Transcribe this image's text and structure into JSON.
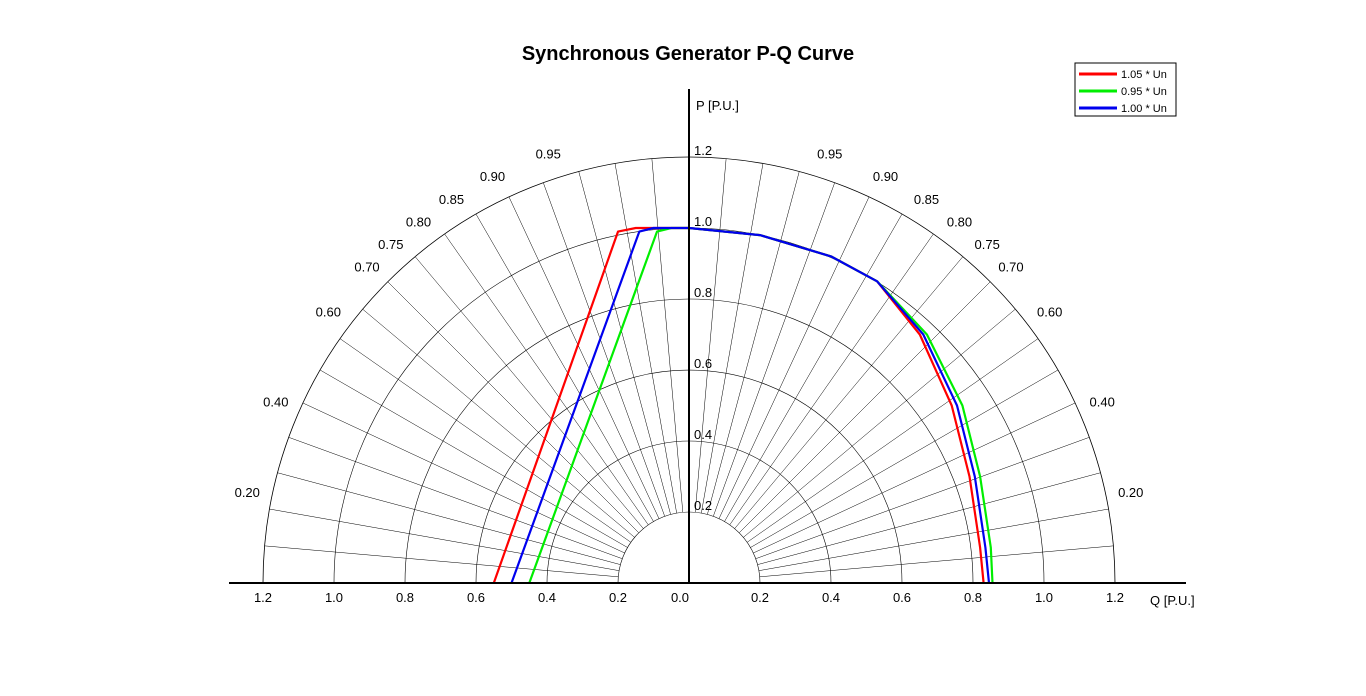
{
  "chart_data": {
    "type": "line",
    "title": "Synchronous Generator P-Q Curve",
    "xlabel": "Q [P.U.]",
    "ylabel": "P [P.U.]",
    "xlim": [
      -1.2,
      1.2
    ],
    "ylim": [
      0,
      1.2
    ],
    "x_ticks": [
      "1.2",
      "1.0",
      "0.8",
      "0.6",
      "0.4",
      "0.2",
      "0.0",
      "0.2",
      "0.4",
      "0.6",
      "0.8",
      "1.0",
      "1.2"
    ],
    "x_tick_values": [
      -1.2,
      -1.0,
      -0.8,
      -0.6,
      -0.4,
      -0.2,
      0.0,
      0.2,
      0.4,
      0.6,
      0.8,
      1.0,
      1.2
    ],
    "radial_ticks": [
      "0.2",
      "0.4",
      "0.6",
      "0.8",
      "1.0",
      "1.2"
    ],
    "radial_tick_values": [
      0.2,
      0.4,
      0.6,
      0.8,
      1.0,
      1.2
    ],
    "power_factor_labels_left": [
      {
        "label": "0.95",
        "pf": 0.95
      },
      {
        "label": "0.90",
        "pf": 0.9
      },
      {
        "label": "0.85",
        "pf": 0.85
      },
      {
        "label": "0.80",
        "pf": 0.8
      },
      {
        "label": "0.75",
        "pf": 0.75
      },
      {
        "label": "0.70",
        "pf": 0.7
      },
      {
        "label": "0.60",
        "pf": 0.6
      },
      {
        "label": "0.40",
        "pf": 0.4
      },
      {
        "label": "0.20",
        "pf": 0.2
      }
    ],
    "power_factor_labels_right": [
      {
        "label": "0.95",
        "pf": 0.95
      },
      {
        "label": "0.90",
        "pf": 0.9
      },
      {
        "label": "0.85",
        "pf": 0.85
      },
      {
        "label": "0.80",
        "pf": 0.8
      },
      {
        "label": "0.75",
        "pf": 0.75
      },
      {
        "label": "0.70",
        "pf": 0.7
      },
      {
        "label": "0.60",
        "pf": 0.6
      },
      {
        "label": "0.40",
        "pf": 0.4
      },
      {
        "label": "0.20",
        "pf": 0.2
      }
    ],
    "grid": true,
    "legend_position": "top-right",
    "series": [
      {
        "name": "1.05 * Un",
        "color": "#ff0000",
        "points": [
          [
            -0.55,
            0.0
          ],
          [
            -0.2,
            0.99
          ],
          [
            -0.15,
            1.0
          ],
          [
            0.0,
            1.0
          ],
          [
            0.2,
            0.98
          ],
          [
            0.4,
            0.92
          ],
          [
            0.53,
            0.85
          ],
          [
            0.65,
            0.7
          ],
          [
            0.74,
            0.5
          ],
          [
            0.79,
            0.3
          ],
          [
            0.82,
            0.1
          ],
          [
            0.83,
            0.0
          ]
        ]
      },
      {
        "name": "0.95 * Un",
        "color": "#00ee00",
        "points": [
          [
            -0.45,
            0.0
          ],
          [
            -0.09,
            0.99
          ],
          [
            -0.05,
            1.0
          ],
          [
            0.0,
            1.0
          ],
          [
            0.2,
            0.98
          ],
          [
            0.4,
            0.92
          ],
          [
            0.53,
            0.85
          ],
          [
            0.67,
            0.7
          ],
          [
            0.77,
            0.5
          ],
          [
            0.82,
            0.3
          ],
          [
            0.85,
            0.1
          ],
          [
            0.855,
            0.0
          ]
        ]
      },
      {
        "name": "1.00 * Un",
        "color": "#0000ee",
        "points": [
          [
            -0.5,
            0.0
          ],
          [
            -0.14,
            0.99
          ],
          [
            -0.1,
            1.0
          ],
          [
            0.0,
            1.0
          ],
          [
            0.2,
            0.98
          ],
          [
            0.4,
            0.92
          ],
          [
            0.53,
            0.85
          ],
          [
            0.66,
            0.7
          ],
          [
            0.755,
            0.5
          ],
          [
            0.805,
            0.3
          ],
          [
            0.835,
            0.1
          ],
          [
            0.845,
            0.0
          ]
        ]
      }
    ]
  }
}
